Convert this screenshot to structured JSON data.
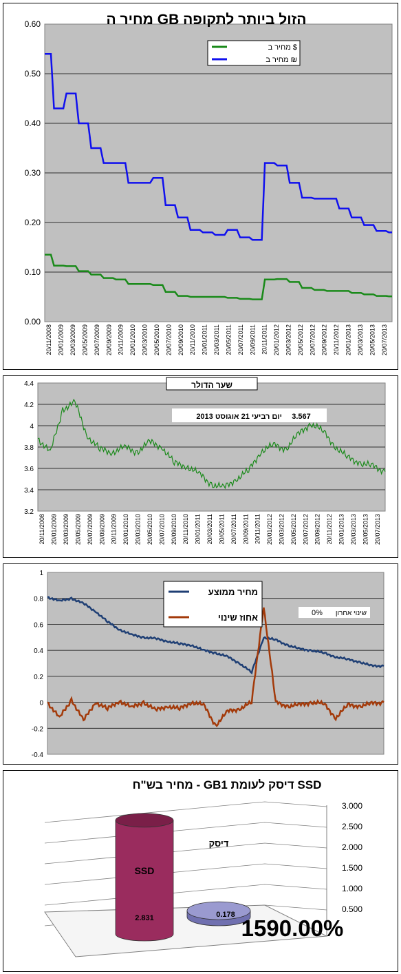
{
  "chart_data": [
    {
      "type": "line",
      "title": "מחיר ה GB הזול ביותר לתקופה",
      "ylim": [
        0,
        0.6
      ],
      "yticks": [
        "0.60",
        "0.50",
        "0.40",
        "0.30",
        "0.20",
        "0.10",
        "0.00"
      ],
      "categories": [
        "20/11/2008",
        "20/01/2009",
        "20/03/2009",
        "20/05/2009",
        "20/07/2009",
        "20/09/2009",
        "20/11/2009",
        "20/01/2010",
        "20/03/2010",
        "20/05/2010",
        "20/07/2010",
        "20/09/2010",
        "20/11/2010",
        "20/01/2011",
        "20/03/2011",
        "20/05/2011",
        "20/07/2011",
        "20/09/2011",
        "20/11/2011",
        "20/01/2012",
        "20/03/2012",
        "20/05/2012",
        "20/07/2012",
        "20/09/2012",
        "20/11/2012",
        "20/01/2013",
        "20/03/2013",
        "20/05/2013",
        "20/07/2013"
      ],
      "legend_position": "top-right",
      "series": [
        {
          "name": "מחיר ב $",
          "color": "#1a8a1a",
          "values": [
            0.135,
            0.113,
            0.112,
            0.102,
            0.095,
            0.088,
            0.085,
            0.076,
            0.076,
            0.074,
            0.06,
            0.052,
            0.05,
            0.05,
            0.05,
            0.048,
            0.046,
            0.045,
            0.085,
            0.086,
            0.08,
            0.068,
            0.064,
            0.062,
            0.062,
            0.058,
            0.055,
            0.052,
            0.051
          ]
        },
        {
          "name": "מחיר ב ₪",
          "color": "#1010ee",
          "values": [
            0.54,
            0.43,
            0.46,
            0.4,
            0.35,
            0.32,
            0.32,
            0.28,
            0.28,
            0.29,
            0.235,
            0.21,
            0.185,
            0.18,
            0.175,
            0.185,
            0.17,
            0.165,
            0.32,
            0.315,
            0.28,
            0.25,
            0.248,
            0.248,
            0.228,
            0.21,
            0.195,
            0.183,
            0.18
          ]
        }
      ]
    },
    {
      "type": "line",
      "title": "שער הדולר",
      "annotation": {
        "value": "3.567",
        "text": "יום רביעי 21 אוגוסט 2013"
      },
      "ylim": [
        3.2,
        4.4
      ],
      "yticks": [
        "4.4",
        "4.2",
        "4",
        "3.8",
        "3.6",
        "3.4",
        "3.2"
      ],
      "categories": [
        "20/11/2008",
        "20/01/2009",
        "20/03/2009",
        "20/05/2009",
        "20/07/2009",
        "20/09/2009",
        "20/11/2009",
        "20/01/2010",
        "20/03/2010",
        "20/05/2010",
        "20/07/2010",
        "20/09/2010",
        "20/11/2010",
        "20/01/2011",
        "20/03/2011",
        "20/05/2011",
        "20/07/2011",
        "20/09/2011",
        "20/11/2011",
        "20/01/2012",
        "20/03/2012",
        "20/05/2012",
        "20/07/2012",
        "20/09/2012",
        "20/11/2012",
        "20/01/2013",
        "20/03/2013",
        "20/05/2013",
        "20/07/2013"
      ],
      "series": [
        {
          "name": "שער הדולר",
          "color": "#1a8a1a",
          "values": [
            3.88,
            3.75,
            4.15,
            4.22,
            3.9,
            3.78,
            3.75,
            3.8,
            3.75,
            3.85,
            3.8,
            3.65,
            3.62,
            3.55,
            3.45,
            3.42,
            3.5,
            3.58,
            3.76,
            3.82,
            3.78,
            3.92,
            4.02,
            3.95,
            3.8,
            3.7,
            3.65,
            3.62,
            3.57
          ]
        }
      ]
    },
    {
      "type": "line",
      "ylim": [
        -0.4,
        1
      ],
      "yticks": [
        "1",
        "0.8",
        "0.6",
        "0.4",
        "0.2",
        "0",
        "-0.2",
        "-0.4"
      ],
      "annotation": {
        "label": "שינוי אחרון",
        "value": "0%"
      },
      "legend_position": "top-center",
      "series": [
        {
          "name": "מחיר ממוצע",
          "color": "#1f3f74",
          "values": [
            0.81,
            0.78,
            0.8,
            0.76,
            0.7,
            0.62,
            0.56,
            0.52,
            0.5,
            0.49,
            0.47,
            0.45,
            0.44,
            0.4,
            0.38,
            0.35,
            0.3,
            0.23,
            0.5,
            0.48,
            0.44,
            0.41,
            0.4,
            0.38,
            0.35,
            0.33,
            0.31,
            0.28,
            0.28
          ]
        },
        {
          "name": "אחוז שינוי",
          "color": "#a33a0a",
          "values": [
            0.0,
            -0.12,
            0.02,
            -0.14,
            0.0,
            -0.05,
            0.01,
            -0.04,
            0.0,
            -0.06,
            -0.03,
            -0.05,
            0.0,
            -0.02,
            -0.18,
            -0.07,
            -0.05,
            0.0,
            0.74,
            0.0,
            -0.03,
            -0.02,
            0.0,
            -0.01,
            -0.12,
            -0.02,
            -0.03,
            -0.01,
            0.0
          ]
        }
      ]
    },
    {
      "type": "bar",
      "title": "מחיר בש\"ח - GB1 דיסק לעומת  SSD",
      "categories": [
        "SSD",
        "דיסק"
      ],
      "values": [
        2.831,
        0.178
      ],
      "value_labels": [
        "2.831",
        "0.178"
      ],
      "yticks": [
        "3.000",
        "2.500",
        "2.000",
        "1.500",
        "1.000",
        "0.500"
      ],
      "ylim": [
        0,
        3
      ],
      "colors": [
        "#9a2c5e",
        "#7070b0"
      ],
      "ratio_label": "1590.00%"
    }
  ]
}
